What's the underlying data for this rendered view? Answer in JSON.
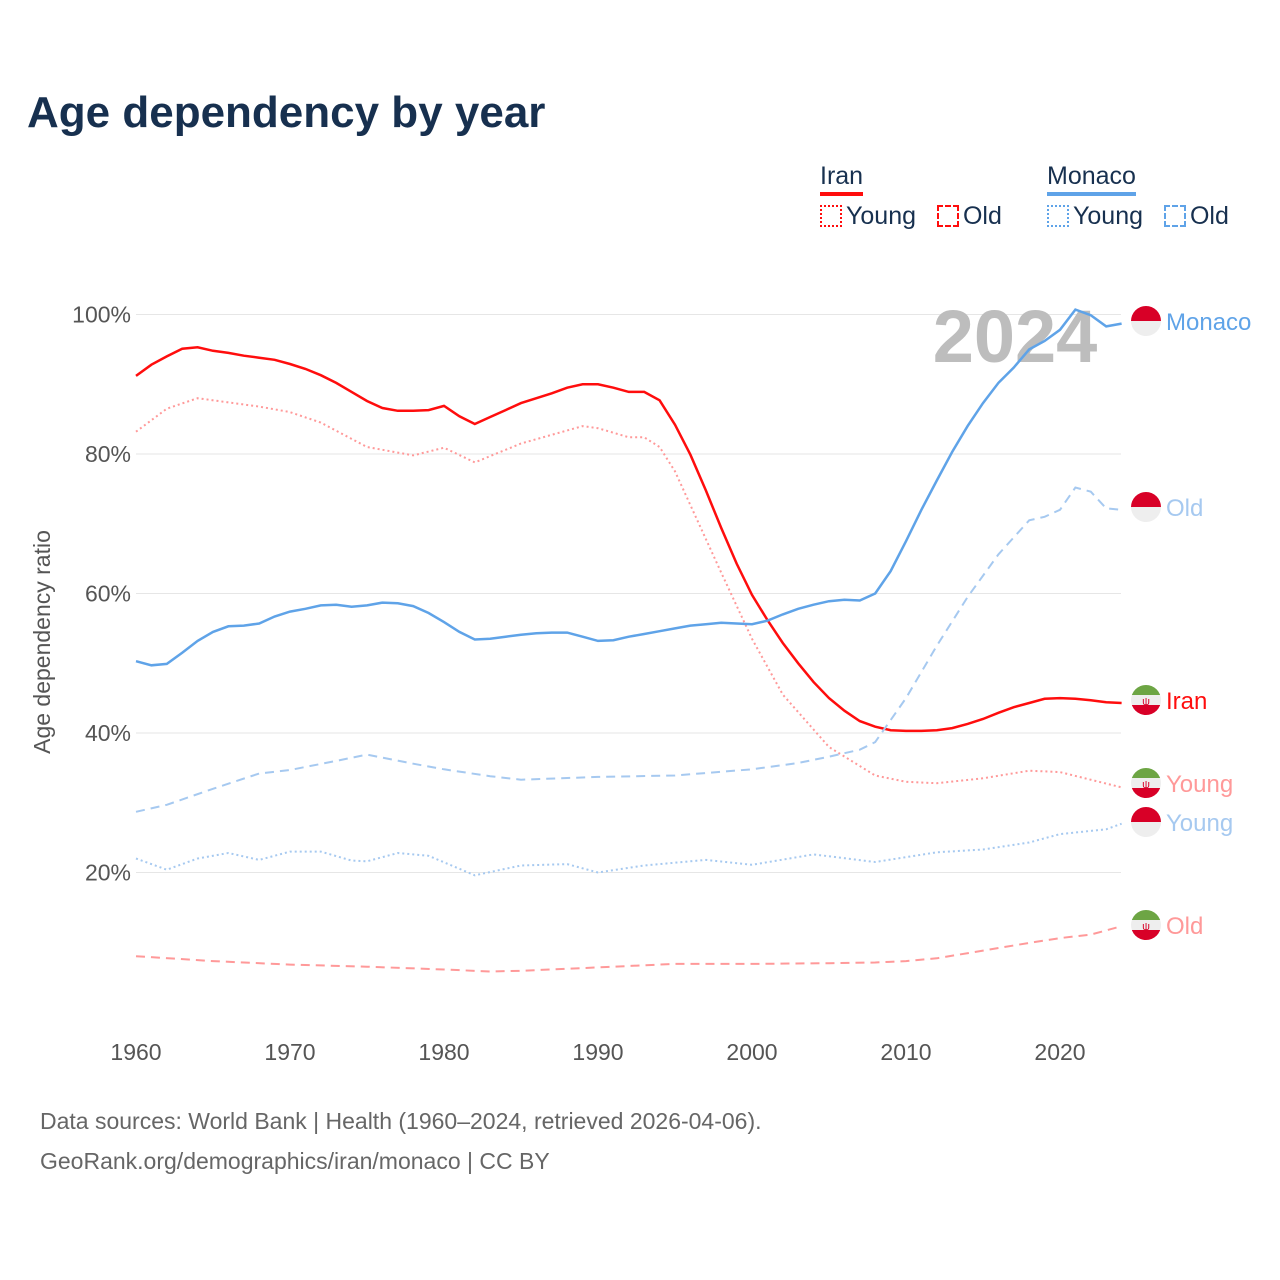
{
  "title": "Age dependency by year",
  "legend": {
    "iran": "Iran",
    "monaco": "Monaco",
    "young": "Young",
    "old": "Old"
  },
  "year_watermark": "2024",
  "source_line1": "Data sources: World Bank | Health (1960–2024, retrieved 2026-04-06).",
  "source_line2": "GeoRank.org/demographics/iran/monaco | CC BY",
  "colors": {
    "iran": "#ff0d0d",
    "iran_light": "#ff9999",
    "monaco": "#5fa3e8",
    "monaco_light": "#a6c9f0"
  },
  "chart_data": {
    "type": "line",
    "title": "Age dependency by year",
    "xlabel": "",
    "ylabel": "Age dependency ratio",
    "xlim": [
      1960,
      2024
    ],
    "ylim": [
      0,
      100
    ],
    "xticks": [
      "1960",
      "1970",
      "1980",
      "1990",
      "2000",
      "2010",
      "2020"
    ],
    "yticks": [
      "20%",
      "40%",
      "60%",
      "80%",
      "100%"
    ],
    "series": [
      {
        "name": "Iran",
        "label": "Iran",
        "country": "iran",
        "style": "solid",
        "color": "#ff0d0d",
        "x": [
          1960,
          1961,
          1962,
          1963,
          1964,
          1965,
          1966,
          1967,
          1968,
          1969,
          1970,
          1971,
          1972,
          1973,
          1974,
          1975,
          1976,
          1977,
          1978,
          1979,
          1980,
          1981,
          1982,
          1983,
          1984,
          1985,
          1986,
          1987,
          1988,
          1989,
          1990,
          1991,
          1992,
          1993,
          1994,
          1995,
          1996,
          1997,
          1998,
          1999,
          2000,
          2001,
          2002,
          2003,
          2004,
          2005,
          2006,
          2007,
          2008,
          2009,
          2010,
          2011,
          2012,
          2013,
          2014,
          2015,
          2016,
          2017,
          2018,
          2019,
          2020,
          2021,
          2022,
          2023,
          2024
        ],
        "y": [
          91.2,
          92.8,
          94,
          95.1,
          95.3,
          94.8,
          94.5,
          94.1,
          93.8,
          93.5,
          92.9,
          92.2,
          91.3,
          90.2,
          88.9,
          87.6,
          86.6,
          86.2,
          86.2,
          86.3,
          86.9,
          85.4,
          84.3,
          85.3,
          86.3,
          87.3,
          88,
          88.7,
          89.5,
          90,
          90,
          89.5,
          88.9,
          88.9,
          87.7,
          84.2,
          79.9,
          74.8,
          69.4,
          64.3,
          59.8,
          56.2,
          52.9,
          50,
          47.3,
          45,
          43.2,
          41.7,
          40.9,
          40.4,
          40.3,
          40.3,
          40.4,
          40.7,
          41.3,
          42,
          42.9,
          43.7,
          44.3,
          44.9,
          45,
          44.9,
          44.7,
          44.4,
          44.3
        ]
      },
      {
        "name": "Iran Young",
        "label": "Young",
        "country": "iran",
        "style": "dotted",
        "color": "#ff9999",
        "x": [
          1960,
          1962,
          1964,
          1966,
          1968,
          1970,
          1972,
          1975,
          1978,
          1980,
          1982,
          1985,
          1989,
          1990,
          1992,
          1993,
          1994,
          1995,
          1998,
          2000,
          2002,
          2005,
          2008,
          2010,
          2012,
          2015,
          2018,
          2020,
          2024
        ],
        "y": [
          83.2,
          86.5,
          88,
          87.4,
          86.8,
          86,
          84.5,
          81,
          79.8,
          80.9,
          78.8,
          81.5,
          84,
          83.7,
          82.4,
          82.4,
          81,
          77.5,
          63,
          53.5,
          45.5,
          38,
          33.9,
          33,
          32.8,
          33.5,
          34.6,
          34.4,
          32.2
        ]
      },
      {
        "name": "Iran Old",
        "label": "Old",
        "country": "iran",
        "style": "dashed",
        "color": "#ff9999",
        "x": [
          1960,
          1965,
          1970,
          1975,
          1980,
          1983,
          1985,
          1990,
          1995,
          2000,
          2005,
          2008,
          2010,
          2012,
          2015,
          2018,
          2020,
          2022,
          2024
        ],
        "y": [
          8,
          7.3,
          6.8,
          6.5,
          6.1,
          5.8,
          5.9,
          6.4,
          6.9,
          6.9,
          7,
          7.1,
          7.3,
          7.7,
          8.8,
          9.9,
          10.6,
          11.1,
          12.3
        ]
      },
      {
        "name": "Monaco",
        "label": "Monaco",
        "country": "monaco",
        "style": "solid",
        "color": "#5fa3e8",
        "x": [
          1960,
          1961,
          1962,
          1963,
          1964,
          1965,
          1966,
          1967,
          1968,
          1969,
          1970,
          1971,
          1972,
          1973,
          1974,
          1975,
          1976,
          1977,
          1978,
          1979,
          1980,
          1981,
          1982,
          1983,
          1984,
          1985,
          1986,
          1987,
          1988,
          1989,
          1990,
          1991,
          1992,
          1993,
          1994,
          1995,
          1996,
          1997,
          1998,
          1999,
          2000,
          2001,
          2002,
          2003,
          2004,
          2005,
          2006,
          2007,
          2008,
          2009,
          2010,
          2011,
          2012,
          2013,
          2014,
          2015,
          2016,
          2017,
          2018,
          2019,
          2020,
          2021,
          2022,
          2023,
          2024
        ],
        "y": [
          50.3,
          49.7,
          49.9,
          51.5,
          53.2,
          54.5,
          55.3,
          55.4,
          55.7,
          56.7,
          57.4,
          57.8,
          58.3,
          58.4,
          58.1,
          58.3,
          58.7,
          58.6,
          58.2,
          57.2,
          55.9,
          54.5,
          53.4,
          53.5,
          53.8,
          54.1,
          54.3,
          54.4,
          54.4,
          53.8,
          53.2,
          53.3,
          53.8,
          54.2,
          54.6,
          55,
          55.4,
          55.6,
          55.8,
          55.7,
          55.6,
          56.1,
          57,
          57.8,
          58.4,
          58.9,
          59.1,
          59,
          60,
          63.2,
          67.5,
          72,
          76.2,
          80.3,
          84,
          87.3,
          90.2,
          92.4,
          95,
          96.2,
          97.8,
          100.7,
          99.9,
          98.3,
          98.7
        ]
      },
      {
        "name": "Monaco Young",
        "label": "Young",
        "country": "monaco",
        "style": "dotted",
        "color": "#a6c9f0",
        "x": [
          1960,
          1962,
          1964,
          1966,
          1968,
          1970,
          1972,
          1974,
          1975,
          1977,
          1979,
          1982,
          1985,
          1988,
          1990,
          1993,
          1997,
          2000,
          2004,
          2008,
          2012,
          2015,
          2018,
          2020,
          2023,
          2024
        ],
        "y": [
          22,
          20.4,
          22,
          22.8,
          21.8,
          23,
          23,
          21.7,
          21.6,
          22.8,
          22.4,
          19.6,
          21,
          21.2,
          20,
          21,
          21.8,
          21.1,
          22.6,
          21.5,
          22.9,
          23.3,
          24.3,
          25.5,
          26.2,
          27
        ]
      },
      {
        "name": "Monaco Old",
        "label": "Old",
        "country": "monaco",
        "style": "dashed",
        "color": "#a6c9f0",
        "x": [
          1960,
          1962,
          1965,
          1968,
          1970,
          1973,
          1975,
          1978,
          1980,
          1983,
          1985,
          1990,
          1995,
          2000,
          2003,
          2005,
          2007,
          2008,
          2010,
          2012,
          2014,
          2016,
          2018,
          2019,
          2020,
          2021,
          2022,
          2023,
          2024
        ],
        "y": [
          28.7,
          29.7,
          32,
          34.2,
          34.7,
          36,
          36.9,
          35.6,
          34.8,
          33.8,
          33.3,
          33.7,
          33.9,
          34.8,
          35.7,
          36.6,
          37.6,
          38.7,
          45,
          52.5,
          59.5,
          65.6,
          70.5,
          71,
          72,
          75.2,
          74.6,
          72.2,
          72
        ]
      }
    ]
  }
}
